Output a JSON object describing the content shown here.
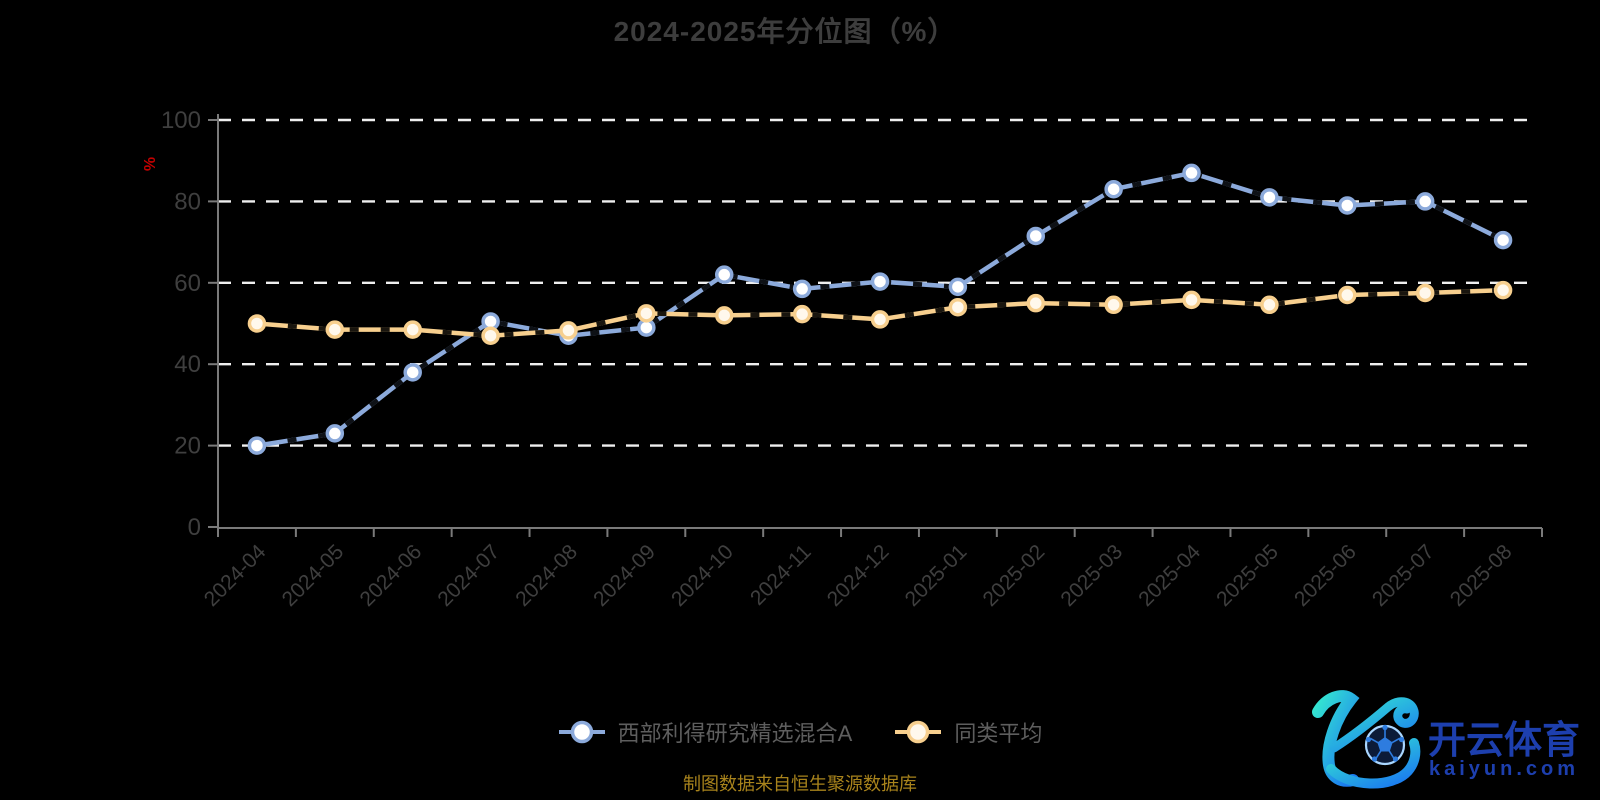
{
  "title": "2024-2025年分位图（%）",
  "chart_data": {
    "type": "line",
    "title": "2024-2025年分位图（%）",
    "xlabel": "",
    "ylabel": "%",
    "ylim": [
      0,
      100
    ],
    "yticks": [
      0,
      20,
      40,
      60,
      80,
      100
    ],
    "grid": "horizontal-dashed-white",
    "legend_position": "bottom-center",
    "categories": [
      "2024-04",
      "2024-05",
      "2024-06",
      "2024-07",
      "2024-08",
      "2024-09",
      "2024-10",
      "2024-11",
      "2024-12",
      "2025-01",
      "2025-02",
      "2025-03",
      "2025-04",
      "2025-05",
      "2025-06",
      "2025-07",
      "2025-08"
    ],
    "series": [
      {
        "name": "西部利得研究精选混合A",
        "color": "#8CAADB",
        "marker_fill": "#ffffff",
        "values": [
          20,
          23,
          38,
          50.5,
          47,
          49,
          62,
          58.5,
          60.3,
          59,
          71.5,
          83,
          87,
          81,
          79,
          80,
          70.5
        ]
      },
      {
        "name": "同类平均",
        "color": "#F7CF8E",
        "marker_fill": "#fff8ec",
        "values": [
          50,
          48.5,
          48.5,
          47,
          48.3,
          52.5,
          52,
          52.3,
          51,
          54,
          55,
          54.6,
          55.8,
          54.6,
          57,
          57.5,
          58.2
        ]
      }
    ]
  },
  "footer": {
    "source_note": "制图数据来自恒生聚源数据库"
  },
  "logo": {
    "brand": "开云体育",
    "domain": "kaiyun.com"
  },
  "colors": {
    "background": "#000000",
    "title_color": "#3d3d3d",
    "axis": "#7a7a7a",
    "tick_label": "#3f3f3f",
    "grid": "#efefef",
    "legend_text": "#5e5e5e",
    "source_note": "#a8831c",
    "ylabel": "#c40000",
    "logo_text": "#1d3fae",
    "logo_gradient_start": "#35e8d0",
    "logo_gradient_end": "#1b7bf0",
    "ball_fill": "#0c1b38",
    "ball_ring": "#a9d6ff",
    "ball_pattern": "#2e7cdf"
  }
}
